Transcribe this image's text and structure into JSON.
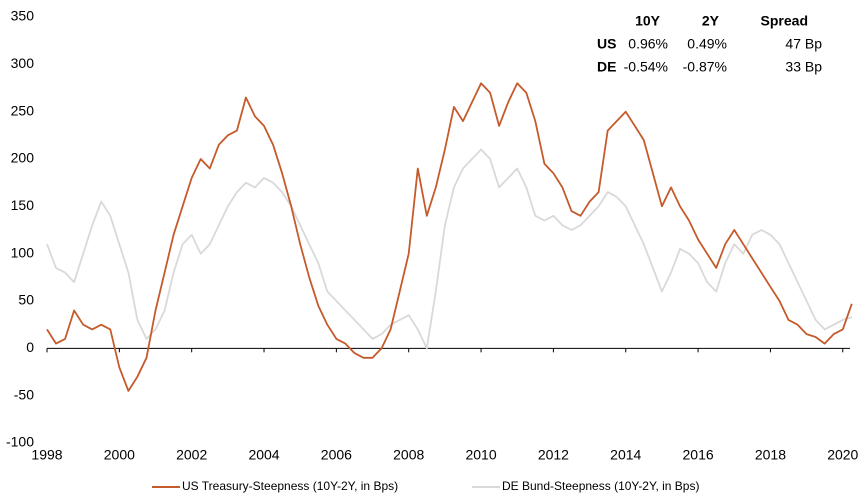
{
  "chart_data": {
    "type": "line",
    "x": [
      1998,
      1998.25,
      1998.5,
      1998.75,
      1999,
      1999.25,
      1999.5,
      1999.75,
      2000,
      2000.25,
      2000.5,
      2000.75,
      2001,
      2001.25,
      2001.5,
      2001.75,
      2002,
      2002.25,
      2002.5,
      2002.75,
      2003,
      2003.25,
      2003.5,
      2003.75,
      2004,
      2004.25,
      2004.5,
      2004.75,
      2005,
      2005.25,
      2005.5,
      2005.75,
      2006,
      2006.25,
      2006.5,
      2006.75,
      2007,
      2007.25,
      2007.5,
      2007.75,
      2008,
      2008.25,
      2008.5,
      2008.75,
      2009,
      2009.25,
      2009.5,
      2009.75,
      2010,
      2010.25,
      2010.5,
      2010.75,
      2011,
      2011.25,
      2011.5,
      2011.75,
      2012,
      2012.25,
      2012.5,
      2012.75,
      2013,
      2013.25,
      2013.5,
      2013.75,
      2014,
      2014.25,
      2014.5,
      2014.75,
      2015,
      2015.25,
      2015.5,
      2015.75,
      2016,
      2016.25,
      2016.5,
      2016.75,
      2017,
      2017.25,
      2017.5,
      2017.75,
      2018,
      2018.25,
      2018.5,
      2018.75,
      2019,
      2019.25,
      2019.5,
      2019.75,
      2020,
      2020.25
    ],
    "series": [
      {
        "name": "US Treasury-Steepness (10Y-2Y, in Bps)",
        "color": "#c55a2b",
        "values": [
          20,
          5,
          10,
          40,
          25,
          20,
          25,
          20,
          -20,
          -45,
          -30,
          -10,
          40,
          80,
          120,
          150,
          180,
          200,
          190,
          215,
          225,
          230,
          265,
          245,
          235,
          215,
          185,
          150,
          110,
          75,
          45,
          25,
          10,
          5,
          -5,
          -10,
          -10,
          0,
          20,
          60,
          100,
          190,
          140,
          170,
          210,
          255,
          240,
          260,
          280,
          270,
          235,
          260,
          280,
          270,
          240,
          195,
          185,
          170,
          145,
          140,
          155,
          165,
          230,
          240,
          250,
          235,
          220,
          185,
          150,
          170,
          150,
          135,
          115,
          100,
          85,
          110,
          125,
          110,
          95,
          80,
          65,
          50,
          30,
          25,
          15,
          12,
          5,
          15,
          20,
          47
        ]
      },
      {
        "name": "DE Bund-Steepness (10Y-2Y, in Bps)",
        "color": "#d9d9d9",
        "values": [
          110,
          85,
          80,
          70,
          100,
          130,
          155,
          140,
          110,
          80,
          30,
          10,
          20,
          40,
          80,
          110,
          120,
          100,
          110,
          130,
          150,
          165,
          175,
          170,
          180,
          175,
          165,
          150,
          130,
          110,
          90,
          60,
          50,
          40,
          30,
          20,
          10,
          15,
          25,
          30,
          35,
          20,
          0,
          60,
          130,
          170,
          190,
          200,
          210,
          200,
          170,
          180,
          190,
          170,
          140,
          135,
          140,
          130,
          125,
          130,
          140,
          150,
          165,
          160,
          150,
          130,
          110,
          85,
          60,
          80,
          105,
          100,
          90,
          70,
          60,
          90,
          110,
          100,
          120,
          125,
          120,
          110,
          90,
          70,
          50,
          30,
          20,
          25,
          30,
          33
        ]
      }
    ],
    "xlim": [
      1998,
      2020.2
    ],
    "xticks": [
      1998,
      2000,
      2002,
      2004,
      2006,
      2008,
      2010,
      2012,
      2014,
      2016,
      2018,
      2020
    ],
    "ylim": [
      -100,
      350
    ],
    "yticks": [
      -100,
      -50,
      0,
      50,
      100,
      150,
      200,
      250,
      300,
      350
    ],
    "table": {
      "columns": [
        "10Y",
        "2Y",
        "Spread"
      ],
      "rows": [
        [
          "US",
          "0.96%",
          "0.49%",
          "47 Bp"
        ],
        [
          "DE",
          "-0.54%",
          "-0.87%",
          "33 Bp"
        ]
      ]
    }
  }
}
